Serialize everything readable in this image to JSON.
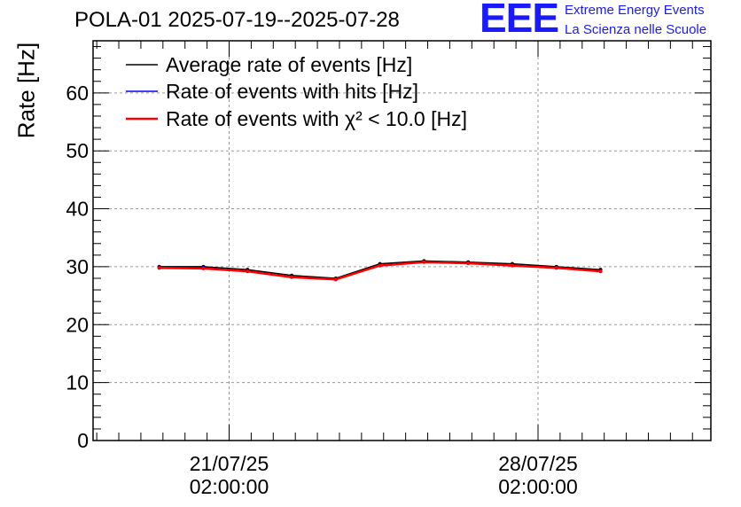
{
  "header": {
    "title": "POLA-01 2025-07-19--2025-07-28",
    "logo_text": "EEE",
    "logo_line1": "Extreme Energy Events",
    "logo_line2": "La Scienza nelle Scuole"
  },
  "colors": {
    "average": "#000000",
    "hits": "#0000ff",
    "chi2": "#ff0000",
    "grid": "#9a9a9a",
    "logo": "#1a1aff"
  },
  "chart_data": {
    "type": "line",
    "ylabel": "Rate [Hz]",
    "ylim": [
      0,
      69
    ],
    "yticks": [
      0,
      10,
      20,
      30,
      40,
      50,
      60
    ],
    "xlim": [
      "2025-07-18 00:00",
      "2025-08-01 00:00"
    ],
    "xticks": [
      {
        "line1": "21/07/25",
        "line2": "02:00:00",
        "value": "2025-07-21 02:00"
      },
      {
        "line1": "28/07/25",
        "line2": "02:00:00",
        "value": "2025-07-28 02:00"
      }
    ],
    "grid": true,
    "legend_position": "top-left",
    "series": [
      {
        "name": "Average rate of events [Hz]",
        "color": "#000000",
        "x": [
          "2025-07-19 12:00",
          "2025-07-20 12:00",
          "2025-07-21 12:00",
          "2025-07-22 12:00",
          "2025-07-23 12:00",
          "2025-07-24 12:00",
          "2025-07-25 12:00",
          "2025-07-26 12:00",
          "2025-07-27 12:00",
          "2025-07-28 12:00",
          "2025-07-29 12:00"
        ],
        "values": [
          30.0,
          30.0,
          29.5,
          28.5,
          28.0,
          30.5,
          31.0,
          30.8,
          30.5,
          30.0,
          29.5
        ]
      },
      {
        "name": "Rate of events with hits [Hz]",
        "color": "#0000ff",
        "x": [
          "2025-07-19 12:00",
          "2025-07-20 12:00",
          "2025-07-21 12:00",
          "2025-07-22 12:00",
          "2025-07-23 12:00",
          "2025-07-24 12:00",
          "2025-07-25 12:00",
          "2025-07-26 12:00",
          "2025-07-27 12:00",
          "2025-07-28 12:00",
          "2025-07-29 12:00"
        ],
        "values": [
          29.8,
          29.8,
          29.2,
          28.2,
          27.8,
          30.2,
          30.8,
          30.6,
          30.2,
          29.8,
          29.2
        ]
      },
      {
        "name": "Rate of events with χ² < 10.0 [Hz]",
        "color": "#ff0000",
        "x": [
          "2025-07-19 12:00",
          "2025-07-20 12:00",
          "2025-07-21 12:00",
          "2025-07-22 12:00",
          "2025-07-23 12:00",
          "2025-07-24 12:00",
          "2025-07-25 12:00",
          "2025-07-26 12:00",
          "2025-07-27 12:00",
          "2025-07-28 12:00",
          "2025-07-29 12:00"
        ],
        "values": [
          29.8,
          29.7,
          29.2,
          28.2,
          27.8,
          30.2,
          30.8,
          30.6,
          30.2,
          29.8,
          29.2
        ]
      }
    ]
  }
}
